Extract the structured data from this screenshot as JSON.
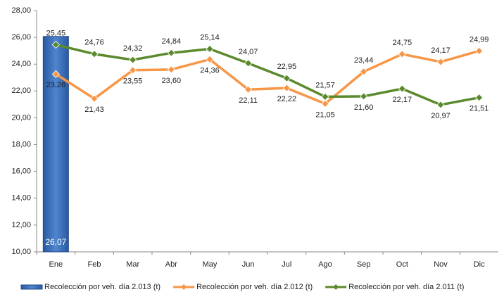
{
  "chart_data": {
    "type": "bar",
    "categories": [
      "Ene",
      "Feb",
      "Mar",
      "Abr",
      "May",
      "Jun",
      "Jul",
      "Ago",
      "Sep",
      "Oct",
      "Nov",
      "Dic"
    ],
    "series": [
      {
        "name": "Recolección por veh. día 2.013 (t)",
        "type": "bar",
        "color": "#3a6fb8",
        "values": [
          26.07,
          null,
          null,
          null,
          null,
          null,
          null,
          null,
          null,
          null,
          null,
          null
        ],
        "value_labels": [
          "26,07",
          null,
          null,
          null,
          null,
          null,
          null,
          null,
          null,
          null,
          null,
          null
        ]
      },
      {
        "name": "Recolección por veh. día 2.012 (t)",
        "type": "line",
        "color": "#f79646",
        "values": [
          23.26,
          21.43,
          23.55,
          23.6,
          24.36,
          22.11,
          22.22,
          21.05,
          23.44,
          24.75,
          24.17,
          24.99
        ],
        "value_labels": [
          "23,26",
          "21,43",
          "23,55",
          "23,60",
          "24,36",
          "22,11",
          "22,22",
          "21,05",
          "23,44",
          "24,75",
          "24,17",
          "24,99"
        ]
      },
      {
        "name": "Recolección por veh. día 2.011 (t)",
        "type": "line",
        "color": "#5b8a2c",
        "values": [
          25.45,
          24.76,
          24.32,
          24.84,
          25.14,
          24.07,
          22.95,
          21.57,
          21.6,
          22.17,
          20.97,
          21.51
        ],
        "value_labels": [
          "25,45",
          "24,76",
          "24,32",
          "24,84",
          "25,14",
          "24,07",
          "22,95",
          "21,57",
          "21,60",
          "22,17",
          "20,97",
          "21,51"
        ]
      }
    ],
    "ylim": [
      10,
      28
    ],
    "yticks": [
      {
        "value": 10,
        "label": "10,00"
      },
      {
        "value": 12,
        "label": "12,00"
      },
      {
        "value": 14,
        "label": "14,00"
      },
      {
        "value": 16,
        "label": "16,00"
      },
      {
        "value": 18,
        "label": "18,00"
      },
      {
        "value": 20,
        "label": "20,00"
      },
      {
        "value": 22,
        "label": "22,00"
      },
      {
        "value": 24,
        "label": "24,00"
      },
      {
        "value": 26,
        "label": "26,00"
      },
      {
        "value": 28,
        "label": "28,00"
      }
    ],
    "grid": false,
    "legend": "bottom"
  }
}
